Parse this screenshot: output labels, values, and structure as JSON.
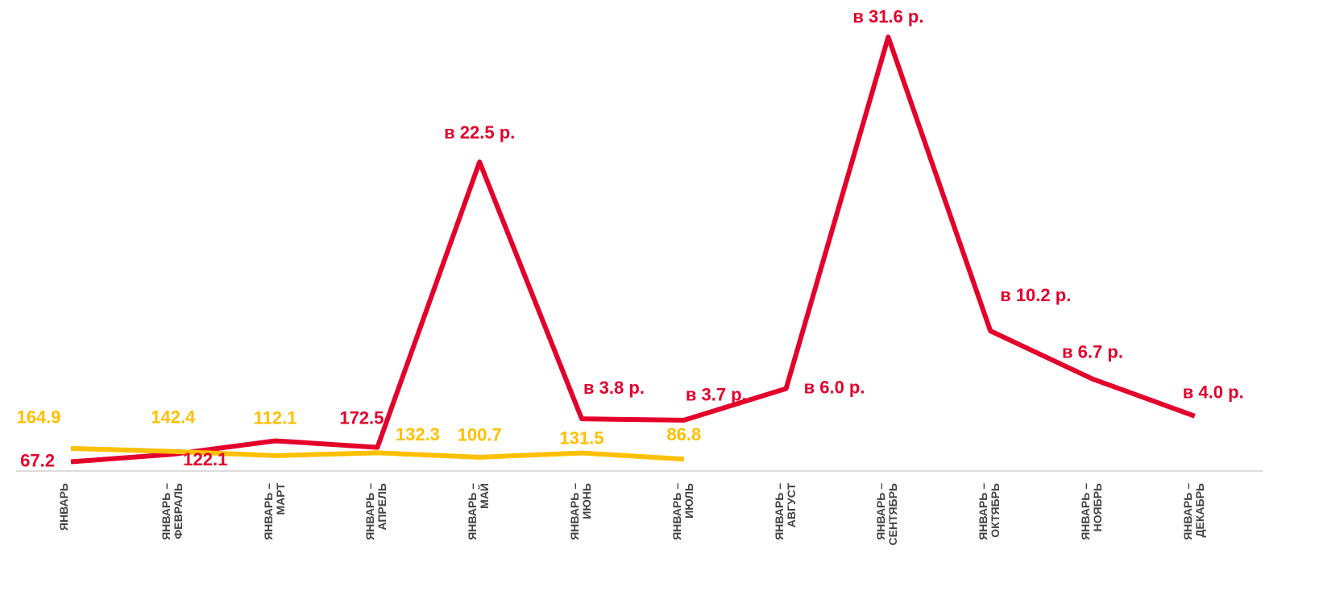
{
  "chart_data": {
    "type": "line",
    "categories": [
      "ЯНВАРЬ",
      "ЯНВАРЬ –\nФЕВРАЛЬ",
      "ЯНВАРЬ –\nМАРТ",
      "ЯНВАРЬ –\nАПРЕЛЬ",
      "ЯНВАРЬ –\nМАЙ",
      "ЯНВАРЬ –\nИЮНЬ",
      "ЯНВАРЬ –\nИЮЛЬ",
      "ЯНВАРЬ –\nАВГУСТ",
      "ЯНВАРЬ –\nСЕНТЯБРЬ",
      "ЯНВАРЬ –\nОКТЯБРЬ",
      "ЯНВАРЬ –\nНОЯБРЬ",
      "ЯНВАРЬ –\nДЕКАБРЬ"
    ],
    "series": [
      {
        "color": "#e4002b",
        "values": [
          0.672,
          1.221,
          2.2,
          1.725,
          22.5,
          3.8,
          3.7,
          6.0,
          31.6,
          10.2,
          6.7,
          4.0
        ],
        "value_labels": [
          "67.2",
          "122.1",
          null,
          "172.5",
          "в 22.5 р.",
          "в 3.8 р.",
          "в 3.7 р.",
          "в 6.0 р.",
          "в 31.6 р.",
          "в 10.2 р.",
          "в 6.7 р.",
          "в 4.0 р."
        ]
      },
      {
        "color": "#ffc000",
        "values": [
          1.649,
          1.424,
          1.121,
          1.323,
          1.007,
          1.315,
          0.868,
          null,
          null,
          null,
          null,
          null
        ],
        "value_labels": [
          "164.9",
          "142.4",
          "112.1",
          "132.3",
          "100.7",
          "131.5",
          "86.8",
          null,
          null,
          null,
          null,
          null
        ]
      }
    ],
    "ylim": [
      0,
      34
    ]
  }
}
